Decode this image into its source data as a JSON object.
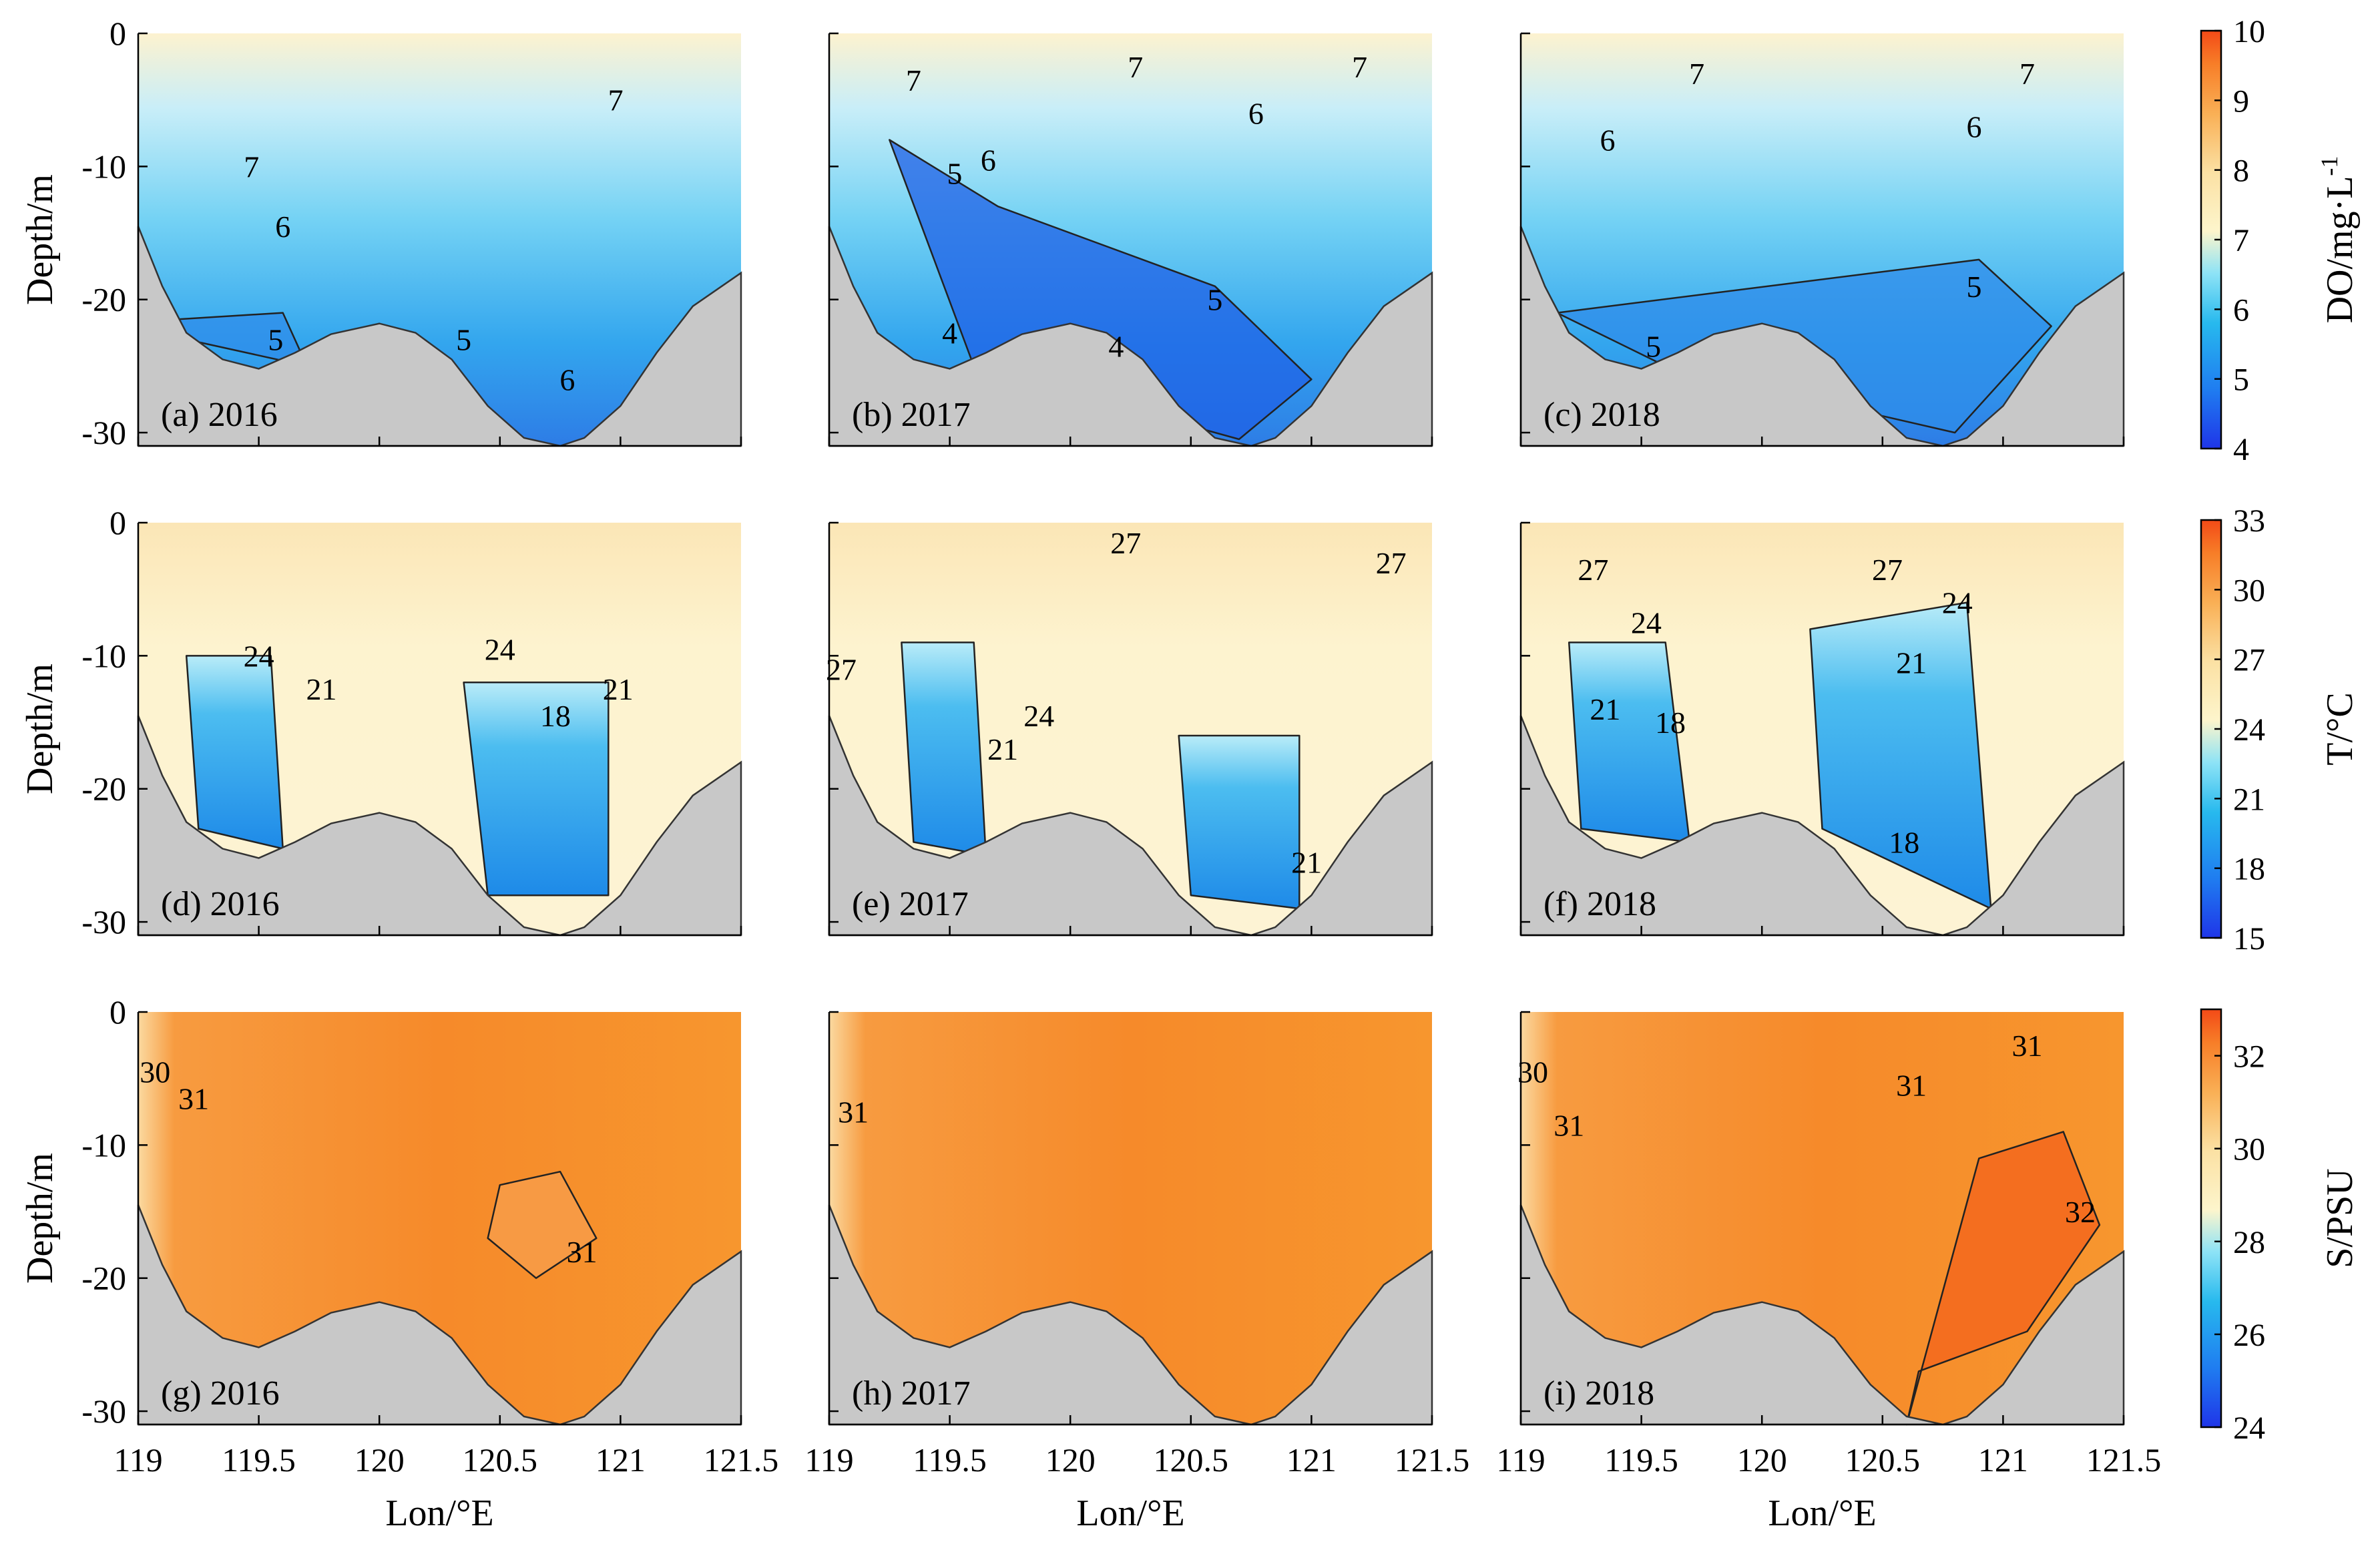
{
  "chart_data": {
    "type": "heatmap",
    "title": "",
    "xlabel": "Lon/°E",
    "ylabel": "Depth/m",
    "x_ticks": [
      "119",
      "119.5",
      "120",
      "120.5",
      "121",
      "121.5"
    ],
    "x_tick_values": [
      119,
      119.5,
      120,
      120.5,
      121,
      121.5
    ],
    "y_ticks": [
      "0",
      "-10",
      "-20",
      "-30"
    ],
    "y_tick_values": [
      0,
      -10,
      -20,
      -30
    ],
    "xlim": [
      119,
      121.5
    ],
    "ylim": [
      -31,
      0
    ],
    "bathymetry": {
      "lon": [
        119,
        119.1,
        119.2,
        119.35,
        119.5,
        119.65,
        119.8,
        120.0,
        120.15,
        120.3,
        120.45,
        120.6,
        120.75,
        120.85,
        121.0,
        121.15,
        121.3,
        121.5
      ],
      "depth": [
        -14.5,
        -19,
        -22.5,
        -24.5,
        -25.2,
        -24,
        -22.6,
        -21.8,
        -22.5,
        -24.5,
        -28,
        -30.4,
        -31,
        -30.4,
        -28,
        -24,
        -20.5,
        -18
      ]
    },
    "rows": [
      {
        "variable": "DO",
        "colorbar_label": "DO/mg·L",
        "colorbar_label_sup": "-1",
        "colorbar_ticks": [
          "4",
          "5",
          "6",
          "7",
          "8",
          "9",
          "10"
        ],
        "colorbar_tick_values": [
          4,
          5,
          6,
          7,
          8,
          9,
          10
        ],
        "panels": [
          {
            "label": "(a) 2016",
            "contour_labels": [
              {
                "text": "7",
                "lon": 120.98,
                "depth": -5
              },
              {
                "text": "7",
                "lon": 119.47,
                "depth": -10
              },
              {
                "text": "6",
                "lon": 119.6,
                "depth": -14.5
              },
              {
                "text": "5",
                "lon": 119.57,
                "depth": -23
              },
              {
                "text": "5",
                "lon": 120.35,
                "depth": -23
              },
              {
                "text": "6",
                "lon": 120.78,
                "depth": -26
              }
            ]
          },
          {
            "label": "(b) 2017",
            "contour_labels": [
              {
                "text": "7",
                "lon": 119.35,
                "depth": -3.5
              },
              {
                "text": "7",
                "lon": 120.27,
                "depth": -2.5
              },
              {
                "text": "7",
                "lon": 121.2,
                "depth": -2.5
              },
              {
                "text": "6",
                "lon": 120.77,
                "depth": -6
              },
              {
                "text": "5",
                "lon": 119.52,
                "depth": -10.5
              },
              {
                "text": "6",
                "lon": 119.66,
                "depth": -9.5
              },
              {
                "text": "5",
                "lon": 120.6,
                "depth": -20
              },
              {
                "text": "4",
                "lon": 119.5,
                "depth": -22.5
              },
              {
                "text": "4",
                "lon": 120.19,
                "depth": -23.5
              }
            ]
          },
          {
            "label": "(c) 2018",
            "contour_labels": [
              {
                "text": "7",
                "lon": 119.73,
                "depth": -3
              },
              {
                "text": "7",
                "lon": 121.1,
                "depth": -3
              },
              {
                "text": "6",
                "lon": 119.36,
                "depth": -8
              },
              {
                "text": "6",
                "lon": 120.88,
                "depth": -7
              },
              {
                "text": "5",
                "lon": 119.55,
                "depth": -23.5
              },
              {
                "text": "5",
                "lon": 120.88,
                "depth": -19
              }
            ]
          }
        ]
      },
      {
        "variable": "T",
        "colorbar_label": "T/°C",
        "colorbar_label_sup": "",
        "colorbar_ticks": [
          "15",
          "18",
          "21",
          "24",
          "27",
          "30",
          "33"
        ],
        "colorbar_tick_values": [
          15,
          18,
          21,
          24,
          27,
          30,
          33
        ],
        "panels": [
          {
            "label": "(d) 2016",
            "contour_labels": [
              {
                "text": "24",
                "lon": 119.5,
                "depth": -10
              },
              {
                "text": "21",
                "lon": 119.76,
                "depth": -12.5
              },
              {
                "text": "24",
                "lon": 120.5,
                "depth": -9.5
              },
              {
                "text": "21",
                "lon": 120.99,
                "depth": -12.5
              },
              {
                "text": "18",
                "lon": 120.73,
                "depth": -14.5
              }
            ]
          },
          {
            "label": "(e) 2017",
            "contour_labels": [
              {
                "text": "27",
                "lon": 120.23,
                "depth": -1.5
              },
              {
                "text": "27",
                "lon": 121.33,
                "depth": -3
              },
              {
                "text": "27",
                "lon": 119.05,
                "depth": -11
              },
              {
                "text": "24",
                "lon": 119.87,
                "depth": -14.5
              },
              {
                "text": "21",
                "lon": 119.72,
                "depth": -17
              },
              {
                "text": "21",
                "lon": 120.98,
                "depth": -25.5
              }
            ]
          },
          {
            "label": "(f) 2018",
            "contour_labels": [
              {
                "text": "27",
                "lon": 119.3,
                "depth": -3.5
              },
              {
                "text": "27",
                "lon": 120.52,
                "depth": -3.5
              },
              {
                "text": "24",
                "lon": 119.52,
                "depth": -7.5
              },
              {
                "text": "24",
                "lon": 120.81,
                "depth": -6
              },
              {
                "text": "21",
                "lon": 120.62,
                "depth": -10.5
              },
              {
                "text": "21",
                "lon": 119.35,
                "depth": -14
              },
              {
                "text": "18",
                "lon": 119.62,
                "depth": -15
              },
              {
                "text": "18",
                "lon": 120.59,
                "depth": -24
              }
            ]
          }
        ]
      },
      {
        "variable": "S",
        "colorbar_label": "S/PSU",
        "colorbar_label_sup": "",
        "colorbar_ticks": [
          "24",
          "26",
          "28",
          "30",
          "32"
        ],
        "colorbar_tick_values": [
          24,
          26,
          28,
          30,
          32
        ],
        "colorbar_range": [
          24,
          33
        ],
        "panels": [
          {
            "label": "(g) 2016",
            "contour_labels": [
              {
                "text": "30",
                "lon": 119.07,
                "depth": -4.5
              },
              {
                "text": "31",
                "lon": 119.23,
                "depth": -6.5
              },
              {
                "text": "31",
                "lon": 120.84,
                "depth": -18
              }
            ]
          },
          {
            "label": "(h) 2017",
            "contour_labels": [
              {
                "text": "31",
                "lon": 119.1,
                "depth": -7.5
              }
            ]
          },
          {
            "label": "(i) 2018",
            "contour_labels": [
              {
                "text": "30",
                "lon": 119.05,
                "depth": -4.5
              },
              {
                "text": "31",
                "lon": 119.2,
                "depth": -8.5
              },
              {
                "text": "31",
                "lon": 120.62,
                "depth": -5.5
              },
              {
                "text": "31",
                "lon": 121.1,
                "depth": -2.5
              },
              {
                "text": "32",
                "lon": 121.32,
                "depth": -15
              }
            ]
          }
        ]
      }
    ]
  }
}
